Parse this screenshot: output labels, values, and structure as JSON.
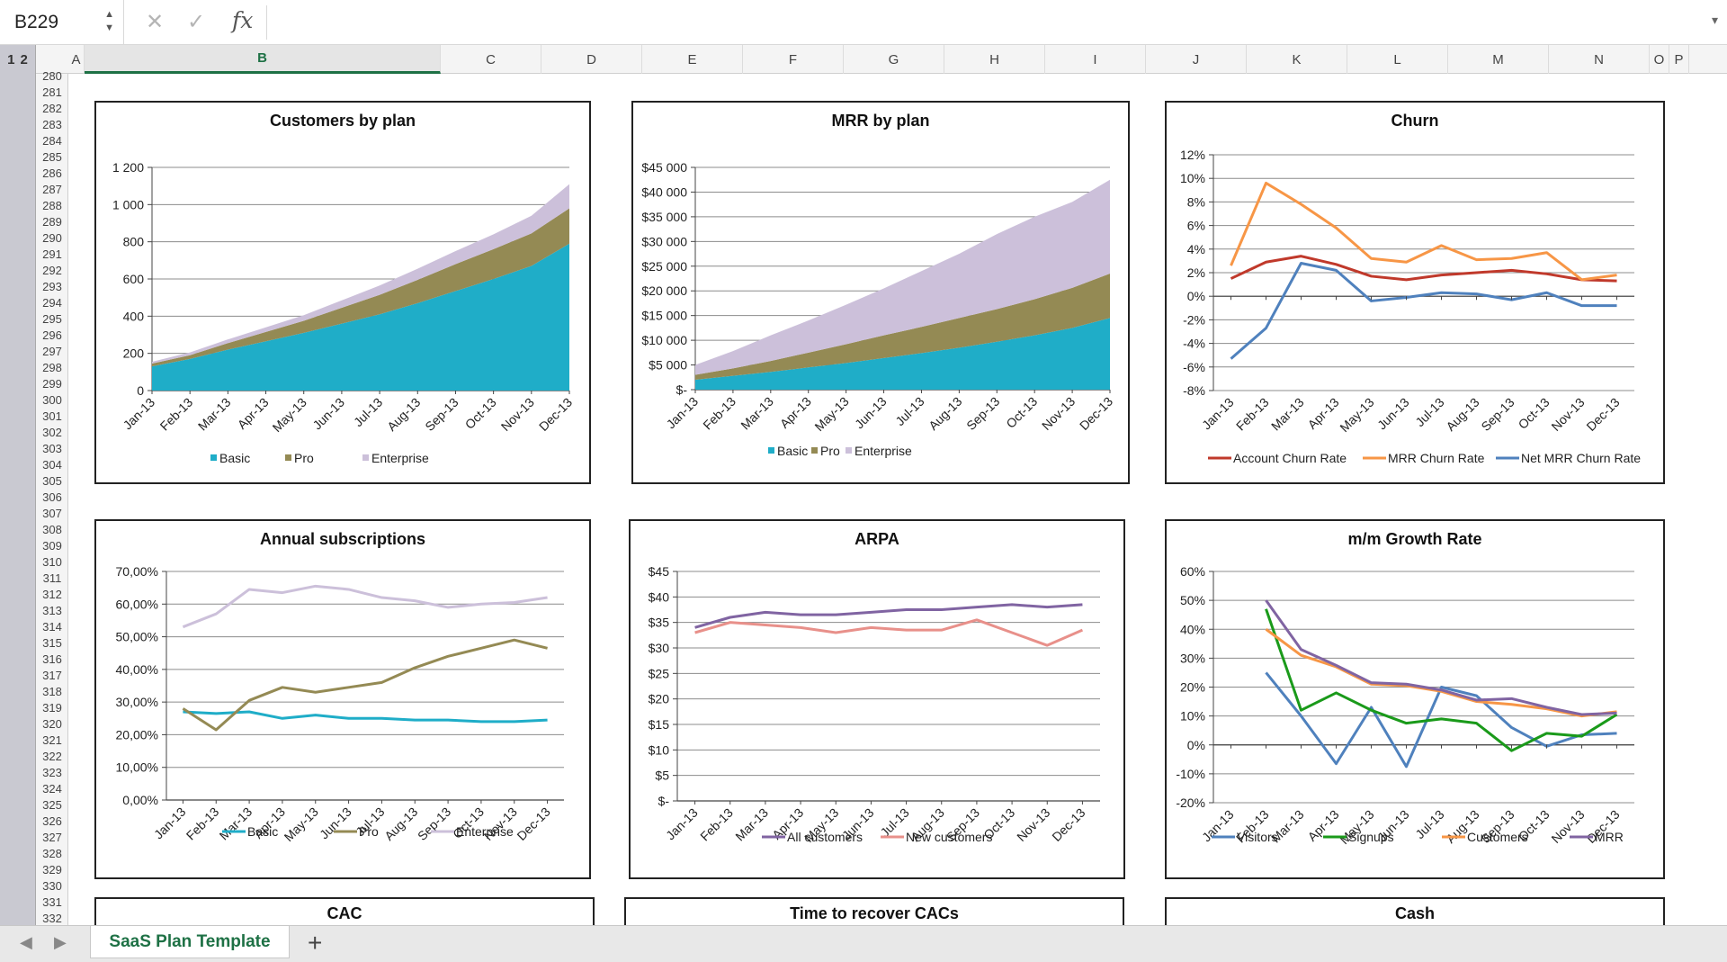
{
  "formula_bar": {
    "name_box": "B229",
    "cancel": "✕",
    "enter": "✓",
    "fx": "fx",
    "formula": "",
    "dropdown": "▾"
  },
  "outline_levels": [
    "1",
    "2"
  ],
  "columns": [
    {
      "label": "A"
    },
    {
      "label": "B",
      "selected": true
    },
    {
      "label": "C"
    },
    {
      "label": "D"
    },
    {
      "label": "E"
    },
    {
      "label": "F"
    },
    {
      "label": "G"
    },
    {
      "label": "H"
    },
    {
      "label": "I"
    },
    {
      "label": "J"
    },
    {
      "label": "K"
    },
    {
      "label": "L"
    },
    {
      "label": "M"
    },
    {
      "label": "N"
    },
    {
      "label": "O"
    },
    {
      "label": "P"
    }
  ],
  "rows": [
    "280",
    "281",
    "282",
    "283",
    "284",
    "285",
    "286",
    "287",
    "288",
    "289",
    "290",
    "291",
    "292",
    "293",
    "294",
    "295",
    "296",
    "297",
    "298",
    "299",
    "300",
    "301",
    "302",
    "303",
    "304",
    "305",
    "306",
    "307",
    "308",
    "309",
    "310",
    "311",
    "312",
    "313",
    "314",
    "315",
    "316",
    "317",
    "318",
    "319",
    "320",
    "321",
    "322",
    "323",
    "324",
    "325",
    "326",
    "327",
    "328",
    "329",
    "330",
    "331",
    "332"
  ],
  "tabs": {
    "active": "SaaS Plan Template",
    "add": "+"
  },
  "colors": {
    "basic": "#1fadc8",
    "pro": "#948a54",
    "enterprise": "#ccc0da",
    "red": "#c0392b",
    "orange": "#f79646",
    "blue": "#4f81bd",
    "green": "#1a9a1a",
    "purple": "#8064a2",
    "pink": "#e8908a",
    "accent": "#1e7145"
  },
  "chart_data": [
    {
      "type": "area",
      "title": "Customers by plan",
      "categories": [
        "Jan-13",
        "Feb-13",
        "Mar-13",
        "Apr-13",
        "May-13",
        "Jun-13",
        "Jul-13",
        "Aug-13",
        "Sep-13",
        "Oct-13",
        "Nov-13",
        "Dec-13"
      ],
      "stacked": true,
      "series": [
        {
          "name": "Basic",
          "values": [
            130,
            170,
            220,
            265,
            310,
            360,
            410,
            470,
            535,
            600,
            670,
            790
          ]
        },
        {
          "name": "Pro",
          "values": [
            15,
            20,
            35,
            50,
            65,
            85,
            105,
            125,
            145,
            160,
            175,
            190
          ]
        },
        {
          "name": "Enterprise",
          "values": [
            10,
            15,
            20,
            25,
            30,
            40,
            50,
            60,
            70,
            80,
            95,
            130
          ]
        }
      ],
      "ylim": [
        0,
        1200
      ],
      "yticks": [
        {
          "v": 0,
          "label": "0"
        },
        {
          "v": 200,
          "label": "200"
        },
        {
          "v": 400,
          "label": "400"
        },
        {
          "v": 600,
          "label": "600"
        },
        {
          "v": 800,
          "label": "800"
        },
        {
          "v": 1000,
          "label": "1 000"
        },
        {
          "v": 1200,
          "label": "1 200"
        }
      ],
      "legend": "bottom"
    },
    {
      "type": "area",
      "title": "MRR by plan",
      "categories": [
        "Jan-13",
        "Feb-13",
        "Mar-13",
        "Apr-13",
        "May-13",
        "Jun-13",
        "Jul-13",
        "Aug-13",
        "Sep-13",
        "Oct-13",
        "Nov-13",
        "Dec-13"
      ],
      "stacked": true,
      "series": [
        {
          "name": "Basic",
          "values": [
            2000,
            2800,
            3600,
            4500,
            5400,
            6400,
            7400,
            8500,
            9700,
            11000,
            12500,
            14500
          ]
        },
        {
          "name": "Pro",
          "values": [
            1000,
            1500,
            2200,
            3000,
            3800,
            4600,
            5300,
            6000,
            6600,
            7300,
            8100,
            9000
          ]
        },
        {
          "name": "Enterprise",
          "values": [
            2000,
            3500,
            5200,
            6500,
            8000,
            9500,
            11300,
            13000,
            15200,
            16700,
            17400,
            19000
          ]
        }
      ],
      "ylim": [
        0,
        45000
      ],
      "yticks": [
        {
          "v": 0,
          "label": "$-"
        },
        {
          "v": 5000,
          "label": "$5 000"
        },
        {
          "v": 10000,
          "label": "$10 000"
        },
        {
          "v": 15000,
          "label": "$15 000"
        },
        {
          "v": 20000,
          "label": "$20 000"
        },
        {
          "v": 25000,
          "label": "$25 000"
        },
        {
          "v": 30000,
          "label": "$30 000"
        },
        {
          "v": 35000,
          "label": "$35 000"
        },
        {
          "v": 40000,
          "label": "$40 000"
        },
        {
          "v": 45000,
          "label": "$45 000"
        }
      ],
      "legend": "bottom"
    },
    {
      "type": "line",
      "title": "Churn",
      "categories": [
        "Jan-13",
        "Feb-13",
        "Mar-13",
        "Apr-13",
        "May-13",
        "Jun-13",
        "Jul-13",
        "Aug-13",
        "Sep-13",
        "Oct-13",
        "Nov-13",
        "Dec-13"
      ],
      "series": [
        {
          "name": "Account Churn Rate",
          "values": [
            1.5,
            2.9,
            3.4,
            2.7,
            1.7,
            1.4,
            1.8,
            2.0,
            2.2,
            1.9,
            1.4,
            1.3
          ]
        },
        {
          "name": "MRR Churn Rate",
          "values": [
            2.6,
            9.6,
            7.8,
            5.8,
            3.2,
            2.9,
            4.3,
            3.1,
            3.2,
            3.7,
            1.4,
            1.8
          ]
        },
        {
          "name": "Net MRR Churn Rate",
          "values": [
            -5.3,
            -2.7,
            2.8,
            2.2,
            -0.4,
            -0.1,
            0.3,
            0.2,
            -0.3,
            0.3,
            -0.8,
            -0.8
          ]
        }
      ],
      "ylim": [
        -8,
        12
      ],
      "yticks": [
        {
          "v": -8,
          "label": "-8%"
        },
        {
          "v": -6,
          "label": "-6%"
        },
        {
          "v": -4,
          "label": "-4%"
        },
        {
          "v": -2,
          "label": "-2%"
        },
        {
          "v": 0,
          "label": "0%"
        },
        {
          "v": 2,
          "label": "2%"
        },
        {
          "v": 4,
          "label": "4%"
        },
        {
          "v": 6,
          "label": "6%"
        },
        {
          "v": 8,
          "label": "8%"
        },
        {
          "v": 10,
          "label": "10%"
        },
        {
          "v": 12,
          "label": "12%"
        }
      ],
      "legend": "bottom"
    },
    {
      "type": "line",
      "title": "Annual subscriptions",
      "categories": [
        "Jan-13",
        "Feb-13",
        "Mar-13",
        "Apr-13",
        "May-13",
        "Jun-13",
        "Jul-13",
        "Aug-13",
        "Sep-13",
        "Oct-13",
        "Nov-13",
        "Dec-13"
      ],
      "series": [
        {
          "name": "Basic",
          "values": [
            27,
            26.5,
            27,
            25,
            26,
            25,
            25,
            24.5,
            24.5,
            24,
            24,
            24.5
          ]
        },
        {
          "name": "Pro",
          "values": [
            28,
            21.5,
            30.5,
            34.5,
            33,
            34.5,
            36,
            40.5,
            44,
            46.5,
            49,
            46.5
          ]
        },
        {
          "name": "Enterprise",
          "values": [
            53,
            57,
            64.5,
            63.5,
            65.5,
            64.5,
            62,
            61,
            59,
            60,
            60.5,
            62
          ]
        }
      ],
      "ylim": [
        0,
        70
      ],
      "yticks": [
        {
          "v": 0,
          "label": "0,00%"
        },
        {
          "v": 10,
          "label": "10,00%"
        },
        {
          "v": 20,
          "label": "20,00%"
        },
        {
          "v": 30,
          "label": "30,00%"
        },
        {
          "v": 40,
          "label": "40,00%"
        },
        {
          "v": 50,
          "label": "50,00%"
        },
        {
          "v": 60,
          "label": "60,00%"
        },
        {
          "v": 70,
          "label": "70,00%"
        }
      ],
      "legend": "bottom"
    },
    {
      "type": "line",
      "title": "ARPA",
      "categories": [
        "Jan-13",
        "Feb-13",
        "Mar-13",
        "Apr-13",
        "May-13",
        "Jun-13",
        "Jul-13",
        "Aug-13",
        "Sep-13",
        "Oct-13",
        "Nov-13",
        "Dec-13"
      ],
      "series": [
        {
          "name": "All customers",
          "values": [
            34,
            36,
            37,
            36.5,
            36.5,
            37,
            37.5,
            37.5,
            38,
            38.5,
            38,
            38.5
          ]
        },
        {
          "name": "New customers",
          "values": [
            33,
            35,
            34.5,
            34,
            33,
            34,
            33.5,
            33.5,
            35.5,
            33,
            30.5,
            33.5
          ]
        }
      ],
      "ylim": [
        0,
        45
      ],
      "yticks": [
        {
          "v": 0,
          "label": "$-"
        },
        {
          "v": 5,
          "label": "$5"
        },
        {
          "v": 10,
          "label": "$10"
        },
        {
          "v": 15,
          "label": "$15"
        },
        {
          "v": 20,
          "label": "$20"
        },
        {
          "v": 25,
          "label": "$25"
        },
        {
          "v": 30,
          "label": "$30"
        },
        {
          "v": 35,
          "label": "$35"
        },
        {
          "v": 40,
          "label": "$40"
        },
        {
          "v": 45,
          "label": "$45"
        }
      ],
      "legend": "bottom"
    },
    {
      "type": "line",
      "title": "m/m Growth Rate",
      "categories": [
        "Jan-13",
        "Feb-13",
        "Mar-13",
        "Apr-13",
        "May-13",
        "Jun-13",
        "Jul-13",
        "Aug-13",
        "Sep-13",
        "Oct-13",
        "Nov-13",
        "Dec-13"
      ],
      "series": [
        {
          "name": "Visitors",
          "values": [
            null,
            25,
            10,
            -6.5,
            13,
            -7.5,
            20,
            17,
            6,
            -0.5,
            3.5,
            4
          ]
        },
        {
          "name": "Signups",
          "values": [
            null,
            47,
            12,
            18,
            12,
            7.5,
            9,
            7.5,
            -2,
            4,
            3,
            10.5
          ]
        },
        {
          "name": "Customers",
          "values": [
            null,
            40,
            31,
            27,
            21,
            20.5,
            18.5,
            15,
            14,
            12.5,
            10,
            11.5
          ]
        },
        {
          "name": "MRR",
          "values": [
            null,
            50,
            33,
            27.5,
            21.5,
            21,
            19,
            15.5,
            16,
            13,
            10.5,
            11
          ]
        }
      ],
      "ylim": [
        -20,
        60
      ],
      "yticks": [
        {
          "v": -20,
          "label": "-20%"
        },
        {
          "v": -10,
          "label": "-10%"
        },
        {
          "v": 0,
          "label": "0%"
        },
        {
          "v": 10,
          "label": "10%"
        },
        {
          "v": 20,
          "label": "20%"
        },
        {
          "v": 30,
          "label": "30%"
        },
        {
          "v": 40,
          "label": "40%"
        },
        {
          "v": 50,
          "label": "50%"
        },
        {
          "v": 60,
          "label": "60%"
        }
      ],
      "legend": "bottom"
    },
    {
      "type": "line",
      "title": "CAC",
      "partial": true
    },
    {
      "type": "line",
      "title": "Time to recover CACs",
      "partial": true
    },
    {
      "type": "line",
      "title": "Cash",
      "partial": true
    }
  ]
}
